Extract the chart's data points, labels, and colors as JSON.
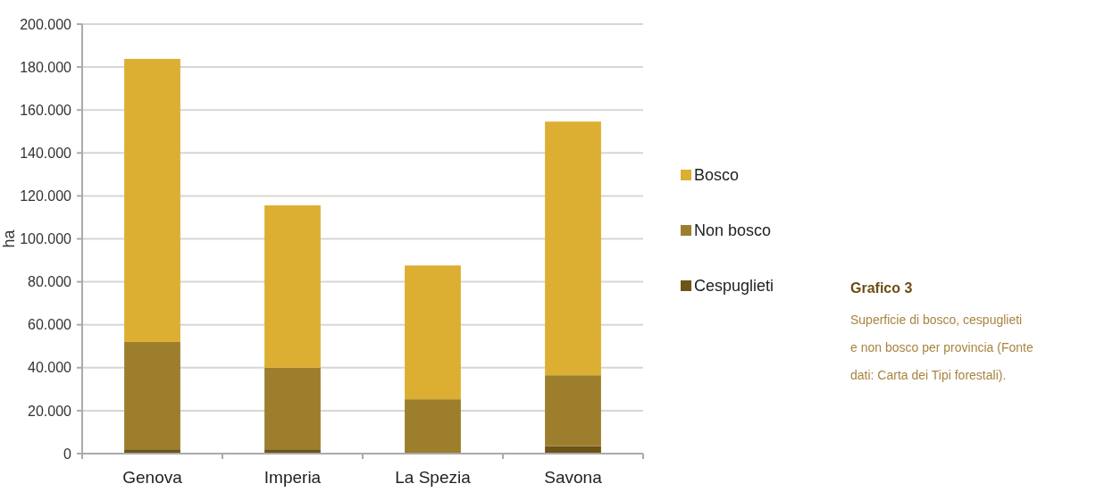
{
  "chart_data": {
    "type": "bar",
    "title": "Grafico 3",
    "subtitle": "Superficie di bosco, cespuglieti e non bosco per provincia (Fonte dati: Carta dei Tipi forestali).",
    "ylabel": "ha",
    "categories": [
      "Genova",
      "Imperia",
      "La Spezia",
      "Savona"
    ],
    "stacked": true,
    "series": [
      {
        "name": "Cespuglieti",
        "color": "#6e5418",
        "values": [
          2000,
          2000,
          null,
          3500
        ]
      },
      {
        "name": "Non bosco",
        "color": "#9c7e2c",
        "values": [
          50000,
          38000,
          25300,
          33000
        ]
      },
      {
        "name": "Bosco",
        "color": "#dcae32",
        "values": [
          131800,
          75600,
          62300,
          118100
        ]
      }
    ],
    "ylim": [
      0,
      200000
    ],
    "yticks": [
      {
        "value": 0,
        "label": "0"
      },
      {
        "value": 20000,
        "label": "20.000"
      },
      {
        "value": 40000,
        "label": "40.000"
      },
      {
        "value": 60000,
        "label": "60.000"
      },
      {
        "value": 80000,
        "label": "80.000"
      },
      {
        "value": 100000,
        "label": "100.000"
      },
      {
        "value": 120000,
        "label": "120.000"
      },
      {
        "value": 140000,
        "label": "140.000"
      },
      {
        "value": 160000,
        "label": "160.000"
      },
      {
        "value": 180000,
        "label": "180.000"
      },
      {
        "value": 200000,
        "label": "200.000"
      }
    ],
    "grid": "y",
    "legend": "right"
  }
}
